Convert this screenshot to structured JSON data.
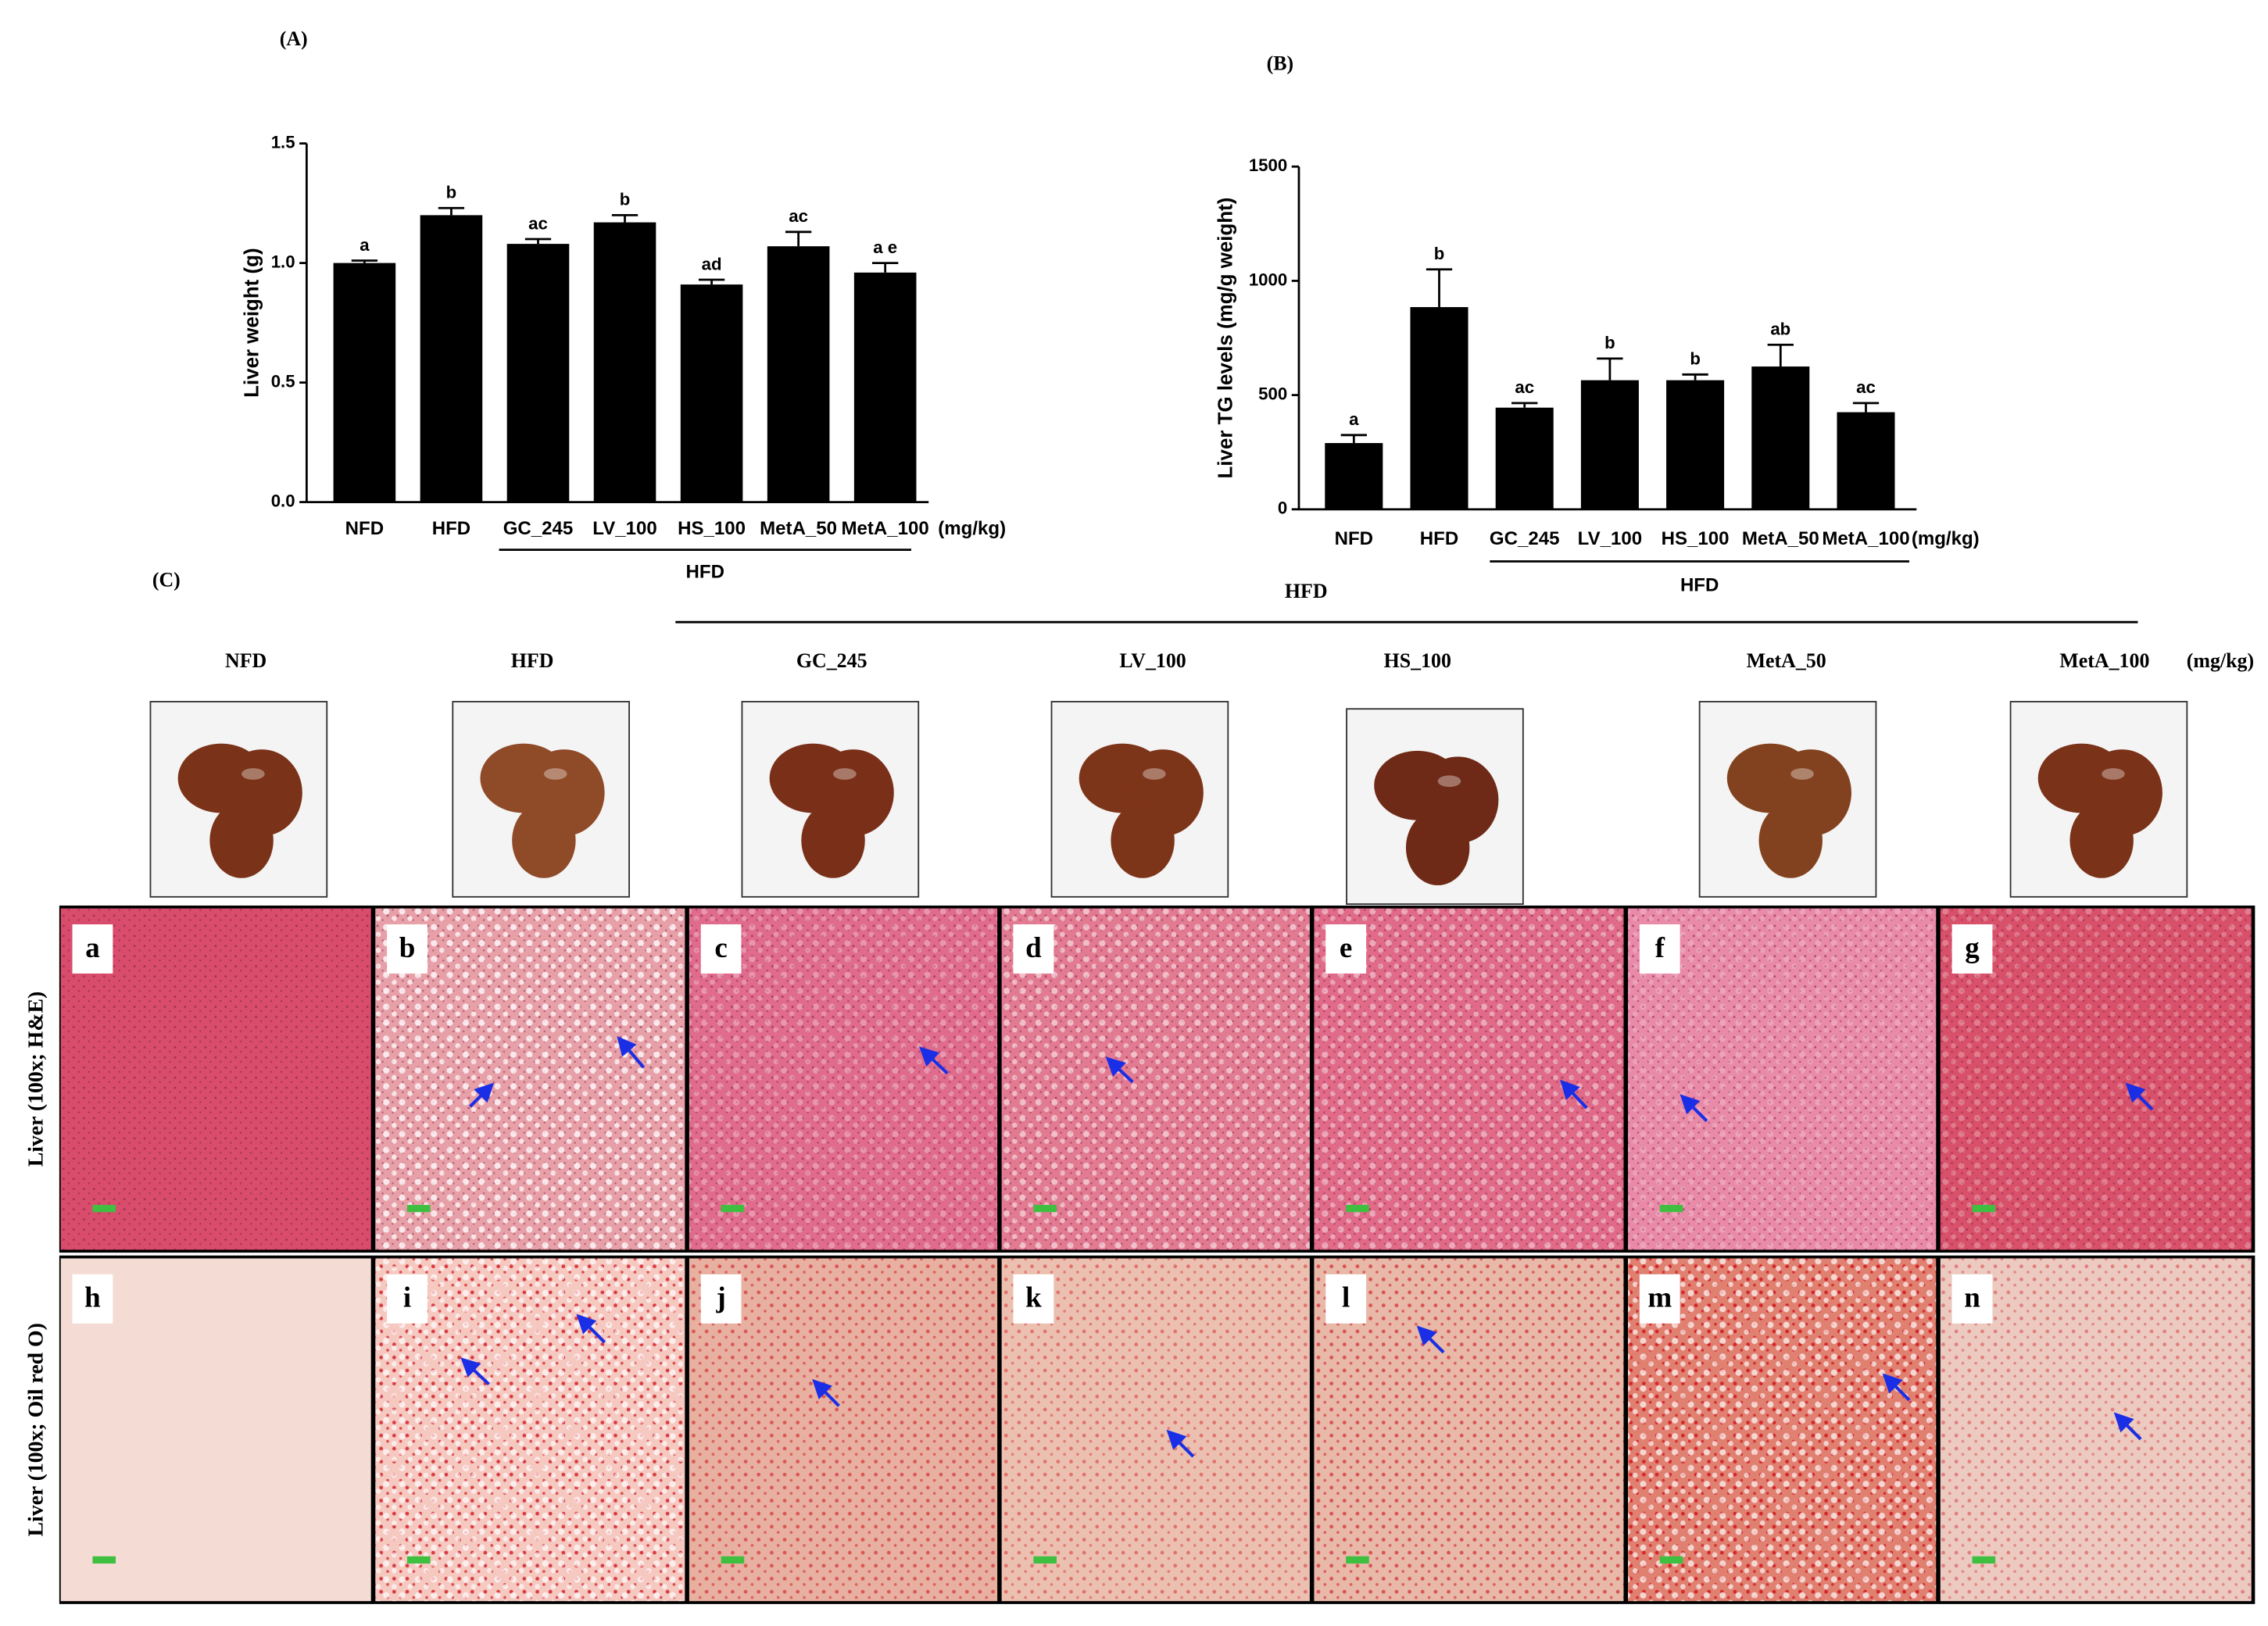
{
  "chart_data": [
    {
      "type": "bar",
      "title": "(A)",
      "ylabel": "Liver weight (g)",
      "categories": [
        "NFD",
        "HFD",
        "GC_245",
        "LV_100",
        "HS_100",
        "MetA_50",
        "MetA_100"
      ],
      "values": [
        1.0,
        1.2,
        1.08,
        1.17,
        0.91,
        1.07,
        0.96
      ],
      "errors": [
        0.01,
        0.03,
        0.02,
        0.03,
        0.02,
        0.06,
        0.04
      ],
      "annotations": [
        "a",
        "b",
        "ac",
        "b",
        "ad",
        "ac",
        "a e"
      ],
      "unit": "(mg/kg)",
      "group_label": "HFD",
      "color": "#000000",
      "ylim": [
        0,
        1.5
      ],
      "yticks": [
        {
          "value": 0,
          "label": "0.0"
        },
        {
          "value": 0.5,
          "label": "0.5"
        },
        {
          "value": 1,
          "label": "1.0"
        },
        {
          "value": 1.5,
          "label": "1.5"
        }
      ]
    },
    {
      "type": "bar",
      "title": "(B)",
      "ylabel": "Liver TG levels (mg/g weight)",
      "categories": [
        "NFD",
        "HFD",
        "GC_245",
        "LV_100",
        "HS_100",
        "MetA_50",
        "MetA_100"
      ],
      "values": [
        290,
        885,
        445,
        565,
        565,
        625,
        425
      ],
      "errors": [
        35,
        165,
        20,
        95,
        25,
        95,
        40
      ],
      "annotations": [
        "a",
        "b",
        "ac",
        "b",
        "b",
        "ab",
        "ac"
      ],
      "unit": "(mg/kg)",
      "group_label": "HFD",
      "color": "#000000",
      "ylim": [
        0,
        1500
      ],
      "yticks": [
        0,
        500,
        1000,
        1500
      ]
    }
  ],
  "panel_c": {
    "label": "(C)",
    "group_label": "HFD",
    "unit": "(mg/kg)",
    "columns": [
      "NFD",
      "HFD",
      "GC_245",
      "LV_100",
      "HS_100",
      "MetA_50",
      "MetA_100"
    ],
    "rows": [
      "Liver (100x; H&E)",
      "Liver (100x; Oil red O)"
    ],
    "panel_letters": [
      [
        "a",
        "b",
        "c",
        "d",
        "e",
        "f",
        "g"
      ],
      [
        "h",
        "i",
        "j",
        "k",
        "l",
        "m",
        "n"
      ]
    ]
  }
}
